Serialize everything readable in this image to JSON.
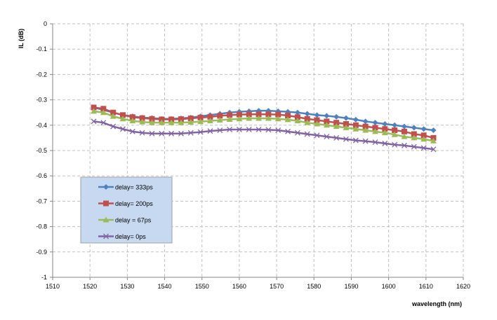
{
  "chart_data": {
    "type": "line",
    "title": "",
    "xlabel": "wavelength (nm)",
    "ylabel": "IL (dB)",
    "xlim": [
      1510,
      1620
    ],
    "ylim": [
      -1,
      0
    ],
    "xticks": [
      1510,
      1520,
      1530,
      1540,
      1550,
      1560,
      1570,
      1580,
      1590,
      1600,
      1610,
      1620
    ],
    "yticks": [
      0,
      -0.1,
      -0.2,
      -0.3,
      -0.4,
      -0.5,
      -0.6,
      -0.7,
      -0.8,
      -0.9,
      -1
    ],
    "grid": true,
    "legend_placement": "lower-left",
    "x": [
      1521,
      1523.6,
      1526.2,
      1528.8,
      1531.4,
      1534,
      1536.6,
      1539.2,
      1541.8,
      1544.4,
      1547,
      1549.6,
      1552.2,
      1554.8,
      1557.4,
      1560,
      1562.6,
      1565.2,
      1567.8,
      1570.4,
      1573,
      1575.6,
      1578.2,
      1580.8,
      1583.4,
      1586,
      1588.6,
      1591.2,
      1593.8,
      1596.4,
      1599,
      1601.6,
      1604.2,
      1606.8,
      1609.4,
      1612
    ],
    "series": [
      {
        "name": "delay= 333ps",
        "color": "#4f81bd",
        "marker": "diamond",
        "values": [
          -0.33,
          -0.34,
          -0.35,
          -0.36,
          -0.365,
          -0.37,
          -0.372,
          -0.375,
          -0.375,
          -0.373,
          -0.37,
          -0.365,
          -0.36,
          -0.355,
          -0.35,
          -0.347,
          -0.345,
          -0.343,
          -0.343,
          -0.345,
          -0.347,
          -0.35,
          -0.355,
          -0.36,
          -0.363,
          -0.367,
          -0.372,
          -0.378,
          -0.385,
          -0.39,
          -0.395,
          -0.4,
          -0.405,
          -0.41,
          -0.415,
          -0.42
        ]
      },
      {
        "name": "delay= 200ps",
        "color": "#c0504d",
        "marker": "square",
        "values": [
          -0.33,
          -0.335,
          -0.35,
          -0.36,
          -0.368,
          -0.372,
          -0.375,
          -0.377,
          -0.377,
          -0.376,
          -0.373,
          -0.37,
          -0.367,
          -0.363,
          -0.36,
          -0.358,
          -0.357,
          -0.357,
          -0.357,
          -0.358,
          -0.362,
          -0.368,
          -0.375,
          -0.38,
          -0.385,
          -0.39,
          -0.395,
          -0.4,
          -0.405,
          -0.41,
          -0.415,
          -0.42,
          -0.425,
          -0.435,
          -0.44,
          -0.45
        ]
      },
      {
        "name": "delay =  67ps",
        "color": "#9bbb59",
        "marker": "triangle",
        "values": [
          -0.345,
          -0.35,
          -0.365,
          -0.375,
          -0.383,
          -0.387,
          -0.39,
          -0.39,
          -0.39,
          -0.39,
          -0.388,
          -0.386,
          -0.383,
          -0.38,
          -0.377,
          -0.375,
          -0.373,
          -0.373,
          -0.373,
          -0.375,
          -0.378,
          -0.383,
          -0.39,
          -0.395,
          -0.4,
          -0.405,
          -0.41,
          -0.415,
          -0.42,
          -0.425,
          -0.43,
          -0.437,
          -0.445,
          -0.45,
          -0.455,
          -0.462
        ]
      },
      {
        "name": "delay= 0ps",
        "color": "#8064a2",
        "marker": "x",
        "values": [
          -0.385,
          -0.39,
          -0.405,
          -0.415,
          -0.425,
          -0.43,
          -0.433,
          -0.433,
          -0.433,
          -0.433,
          -0.43,
          -0.427,
          -0.423,
          -0.42,
          -0.417,
          -0.417,
          -0.417,
          -0.417,
          -0.418,
          -0.42,
          -0.425,
          -0.43,
          -0.435,
          -0.44,
          -0.445,
          -0.45,
          -0.455,
          -0.46,
          -0.463,
          -0.467,
          -0.472,
          -0.477,
          -0.48,
          -0.485,
          -0.49,
          -0.495
        ]
      }
    ],
    "legend_bg": "#c6d9f1"
  }
}
